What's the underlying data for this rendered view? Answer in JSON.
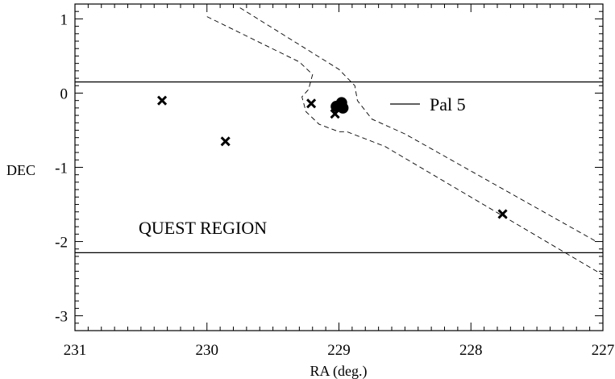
{
  "chart_data": {
    "type": "scatter",
    "xlabel": "RA (deg.)",
    "ylabel": "DEC",
    "xlim": [
      231,
      227
    ],
    "ylim": [
      -3.2,
      1.2
    ],
    "xticks": [
      231,
      230,
      229,
      228,
      227
    ],
    "xtick_labels": [
      "231",
      "230",
      "229",
      "228",
      "227"
    ],
    "yticks": [
      1,
      0,
      -1,
      -2,
      -3
    ],
    "ytick_labels": [
      "1",
      "0",
      "-1",
      "-2",
      "-3"
    ],
    "quest_region": {
      "label": "QUEST REGION",
      "dec_upper": 0.15,
      "dec_lower": -2.15
    },
    "pal5": {
      "label": "Pal 5",
      "points": [
        {
          "ra": 229.02,
          "dec": -0.18
        },
        {
          "ra": 228.98,
          "dec": -0.13
        },
        {
          "ra": 228.97,
          "dec": -0.2
        }
      ]
    },
    "crosses": [
      {
        "ra": 230.34,
        "dec": -0.1
      },
      {
        "ra": 229.86,
        "dec": -0.65
      },
      {
        "ra": 229.21,
        "dec": -0.14
      },
      {
        "ra": 229.03,
        "dec": -0.28
      },
      {
        "ra": 227.76,
        "dec": -1.63
      }
    ],
    "tidal_tail_outline": [
      [
        {
          "ra": 230.0,
          "dec": 1.03
        },
        {
          "ra": 229.3,
          "dec": 0.42
        },
        {
          "ra": 229.2,
          "dec": 0.25
        },
        {
          "ra": 229.23,
          "dec": 0.05
        },
        {
          "ra": 229.28,
          "dec": -0.05
        },
        {
          "ra": 229.25,
          "dec": -0.25
        },
        {
          "ra": 229.15,
          "dec": -0.42
        },
        {
          "ra": 229.0,
          "dec": -0.52
        },
        {
          "ra": 228.94,
          "dec": -0.52
        },
        {
          "ra": 228.65,
          "dec": -0.72
        },
        {
          "ra": 227.0,
          "dec": -2.45
        }
      ],
      [
        {
          "ra": 229.75,
          "dec": 1.15
        },
        {
          "ra": 229.0,
          "dec": 0.32
        },
        {
          "ra": 228.88,
          "dec": 0.1
        },
        {
          "ra": 228.86,
          "dec": -0.1
        },
        {
          "ra": 228.75,
          "dec": -0.35
        },
        {
          "ra": 228.5,
          "dec": -0.55
        },
        {
          "ra": 227.05,
          "dec": -2.0
        }
      ]
    ]
  }
}
